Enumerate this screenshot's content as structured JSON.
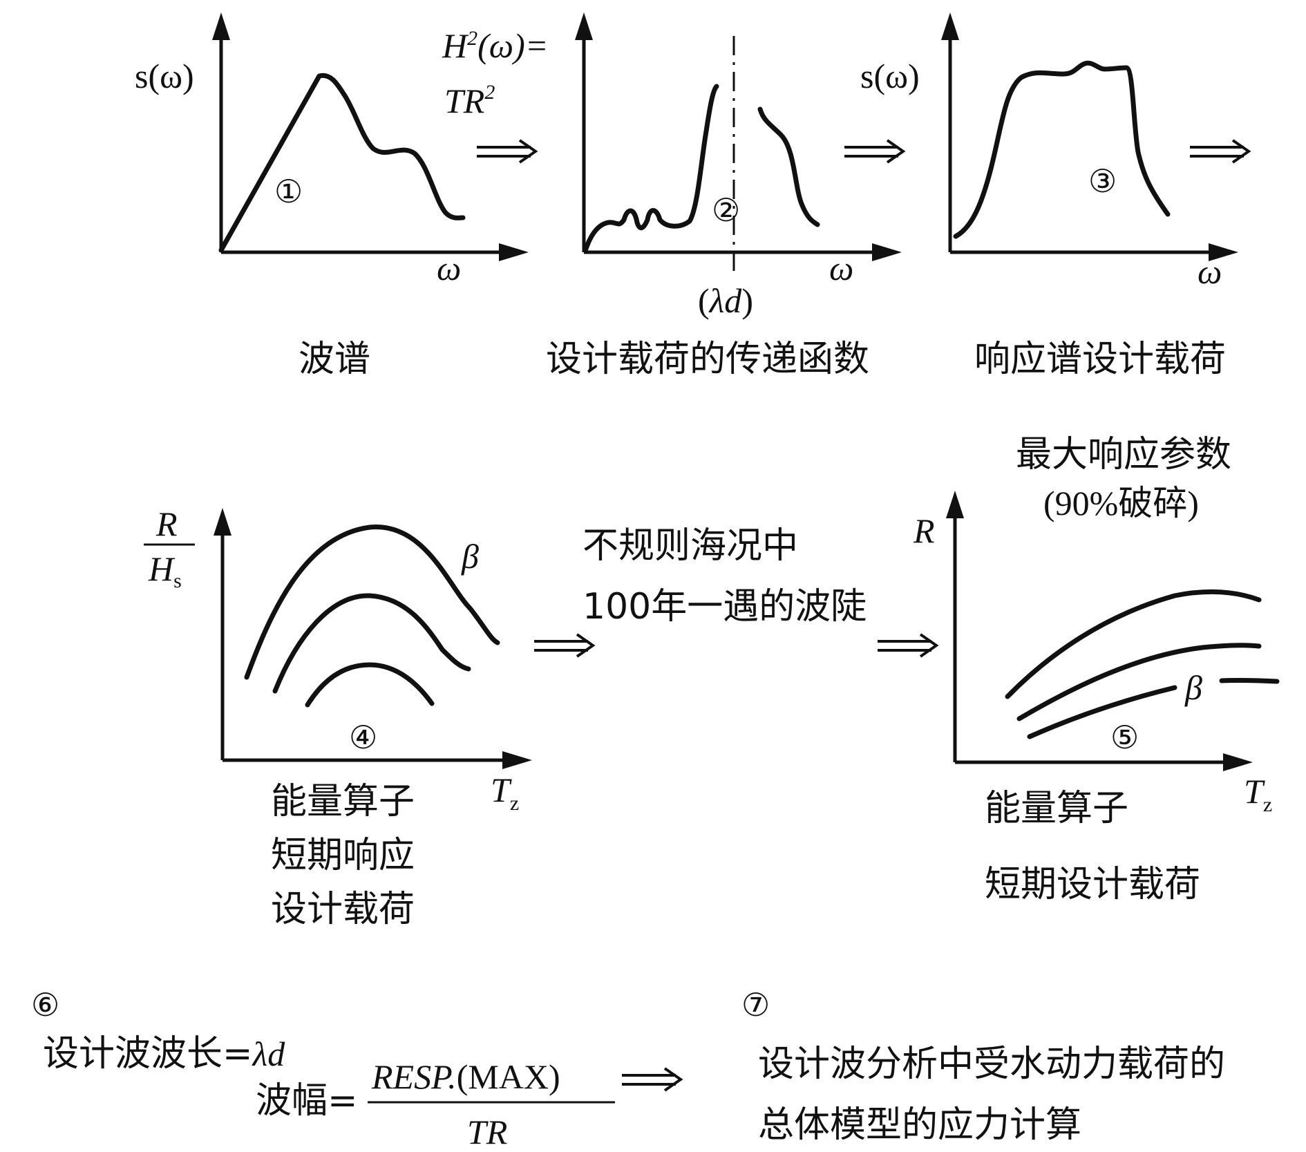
{
  "panel1": {
    "ylabel": "s(ω)",
    "xlabel": "ω",
    "marker": "①",
    "caption": "波谱"
  },
  "panel2": {
    "ylabel_top": "H(ω)=",
    "ylabel_top_sup": "2",
    "ylabel_bottom": "TR",
    "ylabel_bottom_sup": "2",
    "xlabel": "ω",
    "marker": "②",
    "tick_label": "(λd)",
    "caption": "设计载荷的传递函数"
  },
  "panel3": {
    "ylabel": "s(ω)",
    "xlabel": "ω",
    "marker": "③",
    "caption": "响应谱设计载荷"
  },
  "panel4": {
    "ylabel_num": "R",
    "ylabel_den": "H",
    "ylabel_den_sub": "s",
    "xlabel": "T",
    "xlabel_sub": "z",
    "curve_label": "β",
    "marker": "④",
    "caption": [
      "能量算子",
      "短期响应",
      "设计载荷"
    ]
  },
  "middle_text": [
    "不规则海况中",
    "100年一遇的波陡"
  ],
  "panel5": {
    "title": [
      "最大响应参数",
      "(90%破碎)"
    ],
    "ylabel": "R",
    "xlabel": "T",
    "xlabel_sub": "z",
    "curve_label": "β",
    "marker": "⑤",
    "caption": [
      "能量算子",
      "短期设计载荷"
    ]
  },
  "step6": {
    "marker": "⑥",
    "wavelength_label": "设计波波长=",
    "wavelength_value": "λd",
    "amplitude_label": "波幅=",
    "numerator_italic": "RESP.",
    "numerator_roman": "(MAX)",
    "denominator": "TR"
  },
  "step7": {
    "marker": "⑦",
    "text": [
      "设计波分析中受水动力载荷的",
      "总体模型的应力计算"
    ]
  }
}
